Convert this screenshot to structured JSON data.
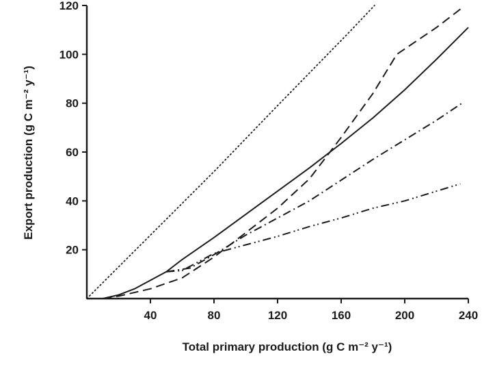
{
  "chart_data": {
    "type": "line",
    "xlabel": "Total primary production (g C m⁻² y⁻¹)",
    "ylabel": "Export production (g C m⁻² y⁻¹)",
    "xlim": [
      0,
      240
    ],
    "ylim": [
      0,
      120
    ],
    "xticks": [
      40,
      80,
      120,
      160,
      200,
      240
    ],
    "yticks": [
      20,
      40,
      60,
      80,
      100,
      120
    ],
    "grid": false,
    "series": [
      {
        "style": "dotted",
        "points": [
          [
            0,
            0
          ],
          [
            40,
            26
          ],
          [
            80,
            52
          ],
          [
            120,
            79
          ],
          [
            165,
            109
          ],
          [
            181,
            120
          ]
        ]
      },
      {
        "style": "solid",
        "points": [
          [
            10,
            0
          ],
          [
            20,
            1.5
          ],
          [
            30,
            4
          ],
          [
            40,
            7.5
          ],
          [
            50,
            11
          ],
          [
            60,
            16
          ],
          [
            80,
            25
          ],
          [
            100,
            34.5
          ],
          [
            120,
            44
          ],
          [
            140,
            53.5
          ],
          [
            160,
            63.5
          ],
          [
            180,
            74
          ],
          [
            200,
            85.5
          ],
          [
            220,
            98
          ],
          [
            240,
            111
          ]
        ]
      },
      {
        "style": "dashed",
        "points": [
          [
            10,
            0
          ],
          [
            20,
            1
          ],
          [
            40,
            4
          ],
          [
            60,
            8.5
          ],
          [
            80,
            17
          ],
          [
            100,
            27
          ],
          [
            120,
            37
          ],
          [
            140,
            49
          ],
          [
            160,
            66
          ],
          [
            180,
            84
          ],
          [
            195,
            100
          ],
          [
            220,
            111
          ],
          [
            236,
            119
          ]
        ]
      },
      {
        "style": "dash-dot",
        "points": [
          [
            50,
            11
          ],
          [
            65,
            12.5
          ],
          [
            80,
            18
          ],
          [
            100,
            26
          ],
          [
            120,
            33
          ],
          [
            140,
            40
          ],
          [
            160,
            48.5
          ],
          [
            180,
            57
          ],
          [
            200,
            65
          ],
          [
            220,
            73
          ],
          [
            236,
            80
          ]
        ]
      },
      {
        "style": "dash-dot-dot",
        "points": [
          [
            50,
            11
          ],
          [
            60,
            11.5
          ],
          [
            70,
            15
          ],
          [
            80,
            18.5
          ],
          [
            100,
            22
          ],
          [
            120,
            25.5
          ],
          [
            140,
            29.5
          ],
          [
            160,
            33
          ],
          [
            180,
            37
          ],
          [
            200,
            40
          ],
          [
            220,
            44
          ],
          [
            235,
            47
          ]
        ]
      }
    ]
  }
}
